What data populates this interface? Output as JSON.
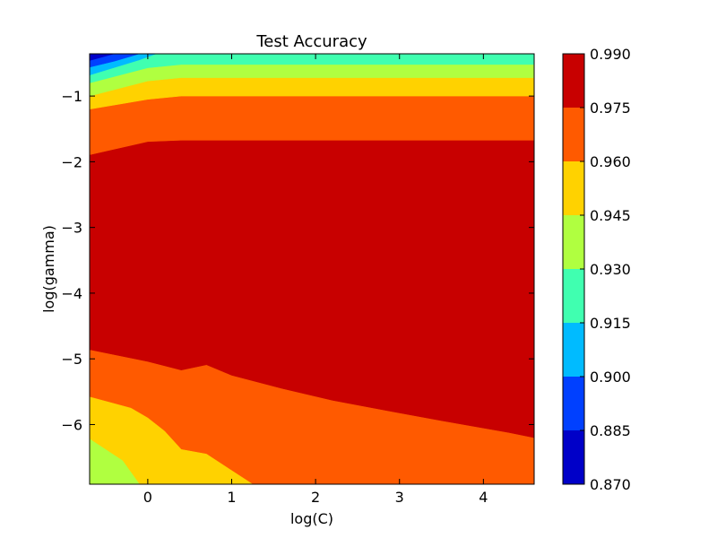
{
  "chart_data": {
    "type": "contour",
    "title": "Test Accuracy",
    "xlabel": "log(C)",
    "ylabel": "log(gamma)",
    "xlim": [
      -0.693,
      4.605
    ],
    "ylim": [
      -6.908,
      -0.357
    ],
    "xticks": [
      0,
      1,
      2,
      3,
      4
    ],
    "xtick_labels": [
      "0",
      "1",
      "2",
      "3",
      "4"
    ],
    "yticks": [
      -6,
      -5,
      -4,
      -3,
      -2,
      -1
    ],
    "ytick_labels": [
      "−6",
      "−5",
      "−4",
      "−3",
      "−2",
      "−1"
    ],
    "colorbar": {
      "levels": [
        0.87,
        0.885,
        0.9,
        0.915,
        0.93,
        0.945,
        0.96,
        0.975,
        0.99
      ],
      "level_labels": [
        "0.870",
        "0.885",
        "0.900",
        "0.915",
        "0.930",
        "0.945",
        "0.960",
        "0.975",
        "0.990"
      ],
      "colors": [
        "#0000c8",
        "#0040ff",
        "#00bbff",
        "#40ffb0",
        "#b0ff40",
        "#ffd200",
        "#ff5a00",
        "#c80000"
      ]
    },
    "regions": [
      {
        "name": "band-0.960-0.975",
        "level_index": 6,
        "boundary": [
          [
            -0.693,
            -0.357
          ],
          [
            4.605,
            -0.357
          ],
          [
            4.605,
            -6.908
          ],
          [
            -0.693,
            -6.908
          ]
        ]
      },
      {
        "name": "band-0.975-0.990",
        "level_index": 7,
        "boundary": [
          [
            -0.693,
            -1.9
          ],
          [
            0,
            -1.7
          ],
          [
            0.4,
            -1.68
          ],
          [
            4.605,
            -1.68
          ],
          [
            4.605,
            -6.2
          ],
          [
            4.3,
            -6.12
          ],
          [
            3.5,
            -5.94
          ],
          [
            2.9,
            -5.8
          ],
          [
            2.2,
            -5.63
          ],
          [
            1.6,
            -5.45
          ],
          [
            1.0,
            -5.25
          ],
          [
            0.7,
            -5.09
          ],
          [
            0.4,
            -5.17
          ],
          [
            0,
            -5.04
          ],
          [
            -0.693,
            -4.86
          ]
        ]
      },
      {
        "name": "band-0.945-0.960-upper",
        "level_index": 5,
        "boundary": [
          [
            -0.693,
            -0.357
          ],
          [
            4.605,
            -0.357
          ],
          [
            4.605,
            -1.0
          ],
          [
            0.4,
            -1.0
          ],
          [
            0,
            -1.05
          ],
          [
            -0.693,
            -1.2
          ]
        ]
      },
      {
        "name": "band-0.945-0.960-lower",
        "level_index": 5,
        "boundary": [
          [
            -0.693,
            -5.58
          ],
          [
            -0.2,
            -5.75
          ],
          [
            0,
            -5.9
          ],
          [
            0.2,
            -6.1
          ],
          [
            0.4,
            -6.38
          ],
          [
            0.7,
            -6.45
          ],
          [
            1.0,
            -6.7
          ],
          [
            1.25,
            -6.908
          ],
          [
            -0.693,
            -6.908
          ]
        ]
      },
      {
        "name": "band-0.930-0.945-upper",
        "level_index": 4,
        "boundary": [
          [
            -0.693,
            -0.357
          ],
          [
            4.605,
            -0.357
          ],
          [
            4.605,
            -0.72
          ],
          [
            0.4,
            -0.72
          ],
          [
            0,
            -0.77
          ],
          [
            -0.693,
            -1.0
          ]
        ]
      },
      {
        "name": "band-0.930-0.945-lower",
        "level_index": 4,
        "boundary": [
          [
            -0.693,
            -6.22
          ],
          [
            -0.3,
            -6.55
          ],
          [
            -0.1,
            -6.908
          ],
          [
            -0.693,
            -6.908
          ]
        ]
      },
      {
        "name": "band-0.915-0.930",
        "level_index": 3,
        "boundary": [
          [
            -0.693,
            -0.357
          ],
          [
            4.605,
            -0.357
          ],
          [
            4.605,
            -0.52
          ],
          [
            0.4,
            -0.52
          ],
          [
            0,
            -0.57
          ],
          [
            -0.693,
            -0.8
          ]
        ]
      },
      {
        "name": "band-0.900-0.915",
        "level_index": 2,
        "boundary": [
          [
            -0.693,
            -0.357
          ],
          [
            0.1,
            -0.357
          ],
          [
            -0.1,
            -0.45
          ],
          [
            -0.693,
            -0.68
          ]
        ]
      },
      {
        "name": "band-0.885-0.900",
        "level_index": 1,
        "boundary": [
          [
            -0.693,
            -0.357
          ],
          [
            -0.1,
            -0.357
          ],
          [
            -0.4,
            -0.47
          ],
          [
            -0.693,
            -0.56
          ]
        ]
      },
      {
        "name": "band-0.870-0.885",
        "level_index": 0,
        "boundary": [
          [
            -0.693,
            -0.357
          ],
          [
            -0.4,
            -0.357
          ],
          [
            -0.693,
            -0.46
          ]
        ]
      }
    ]
  }
}
